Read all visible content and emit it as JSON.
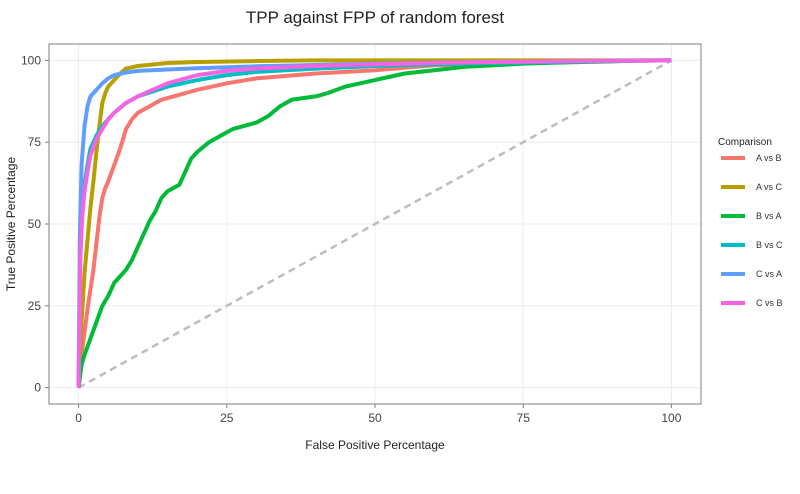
{
  "chart_data": {
    "type": "line",
    "title": "TPP against FPP of random forest",
    "xlabel": "False Positive Percentage",
    "ylabel": "True Positive Percentage",
    "xlim": [
      0,
      100
    ],
    "ylim": [
      0,
      100
    ],
    "xticks": [
      0,
      25,
      50,
      75,
      100
    ],
    "yticks": [
      0,
      25,
      50,
      75,
      100
    ],
    "grid": true,
    "legend": {
      "title": "Comparison",
      "position": "right"
    },
    "reference_line": {
      "style": "dashed",
      "color": "#bdbdbd",
      "x": [
        0,
        100
      ],
      "y": [
        0,
        100
      ]
    },
    "series": [
      {
        "name": "A vs B",
        "color": "#F8766D",
        "x": [
          0,
          0.5,
          1,
          1.5,
          2,
          2.5,
          3,
          3.5,
          4,
          4.5,
          5,
          6,
          7,
          8,
          9,
          10,
          12,
          14,
          16,
          18,
          20,
          25,
          30,
          40,
          50,
          60,
          70,
          80,
          90,
          100
        ],
        "y": [
          0,
          10,
          17,
          24,
          30,
          36,
          44,
          52,
          58,
          61,
          63,
          68,
          73,
          79,
          82,
          84,
          86,
          88,
          89,
          90,
          91,
          93,
          94.5,
          96,
          97,
          98.5,
          99,
          99.5,
          99.8,
          100
        ]
      },
      {
        "name": "A vs C",
        "color": "#B79F00",
        "x": [
          0,
          0.5,
          1,
          1.5,
          2,
          2.5,
          3,
          3.5,
          4,
          4.5,
          5,
          6,
          7,
          8,
          10,
          15,
          20,
          30,
          40,
          60,
          80,
          100
        ],
        "y": [
          0,
          20,
          35,
          45,
          55,
          63,
          72,
          80,
          87,
          90,
          92,
          94,
          96,
          97.5,
          98.3,
          99.2,
          99.5,
          99.8,
          100,
          100,
          100,
          100
        ]
      },
      {
        "name": "B vs A",
        "color": "#00BA38",
        "x": [
          0,
          0.5,
          1,
          2,
          3,
          4,
          5,
          6,
          7,
          8,
          9,
          10,
          11,
          12,
          13,
          14,
          15,
          16,
          17,
          18,
          19,
          20,
          22,
          24,
          26,
          28,
          30,
          32,
          34,
          36,
          38,
          40,
          42,
          45,
          50,
          55,
          60,
          65,
          70,
          75,
          80,
          85,
          90,
          95,
          100
        ],
        "y": [
          0,
          7,
          10,
          15,
          20,
          25,
          28,
          32,
          34,
          36,
          39,
          43,
          47,
          51,
          54,
          58,
          60,
          61,
          62,
          66,
          70,
          72,
          75,
          77,
          79,
          80,
          81,
          83,
          86,
          88,
          88.5,
          89,
          90,
          92,
          94,
          96,
          97,
          98,
          98.5,
          99,
          99.3,
          99.5,
          99.7,
          100,
          100
        ]
      },
      {
        "name": "B vs C",
        "color": "#00BFC4",
        "x": [
          0,
          0.3,
          0.6,
          1,
          1.5,
          2,
          3,
          4,
          5,
          6,
          8,
          10,
          15,
          20,
          25,
          30,
          40,
          50,
          60,
          70,
          80,
          90,
          100
        ],
        "y": [
          0,
          45,
          55,
          62,
          68,
          73,
          77,
          80,
          82,
          84,
          87,
          89,
          92,
          94,
          95.5,
          96.5,
          97.5,
          98.3,
          98.8,
          99.2,
          99.5,
          99.8,
          100
        ]
      },
      {
        "name": "C vs A",
        "color": "#619CFF",
        "x": [
          0,
          0.2,
          0.5,
          1,
          1.5,
          2,
          3,
          4,
          5,
          6,
          8,
          10,
          15,
          20,
          30,
          40,
          50,
          60,
          70,
          80,
          90,
          100
        ],
        "y": [
          0,
          45,
          68,
          80,
          86,
          89,
          91,
          93,
          94.5,
          95.5,
          96.3,
          96.8,
          97.2,
          97.6,
          98.2,
          98.6,
          99,
          99.3,
          99.5,
          99.7,
          99.9,
          100
        ]
      },
      {
        "name": "C vs B",
        "color": "#F564E3",
        "x": [
          0,
          0.3,
          0.6,
          1,
          1.5,
          2,
          3,
          4,
          5,
          6,
          8,
          10,
          15,
          20,
          25,
          30,
          40,
          50,
          60,
          70,
          80,
          90,
          100
        ],
        "y": [
          0,
          40,
          52,
          60,
          66,
          71,
          76,
          79,
          82,
          84,
          87,
          89,
          93,
          95.5,
          96.8,
          97.5,
          98.3,
          98.8,
          99.2,
          99.5,
          99.7,
          99.9,
          100
        ]
      }
    ]
  }
}
